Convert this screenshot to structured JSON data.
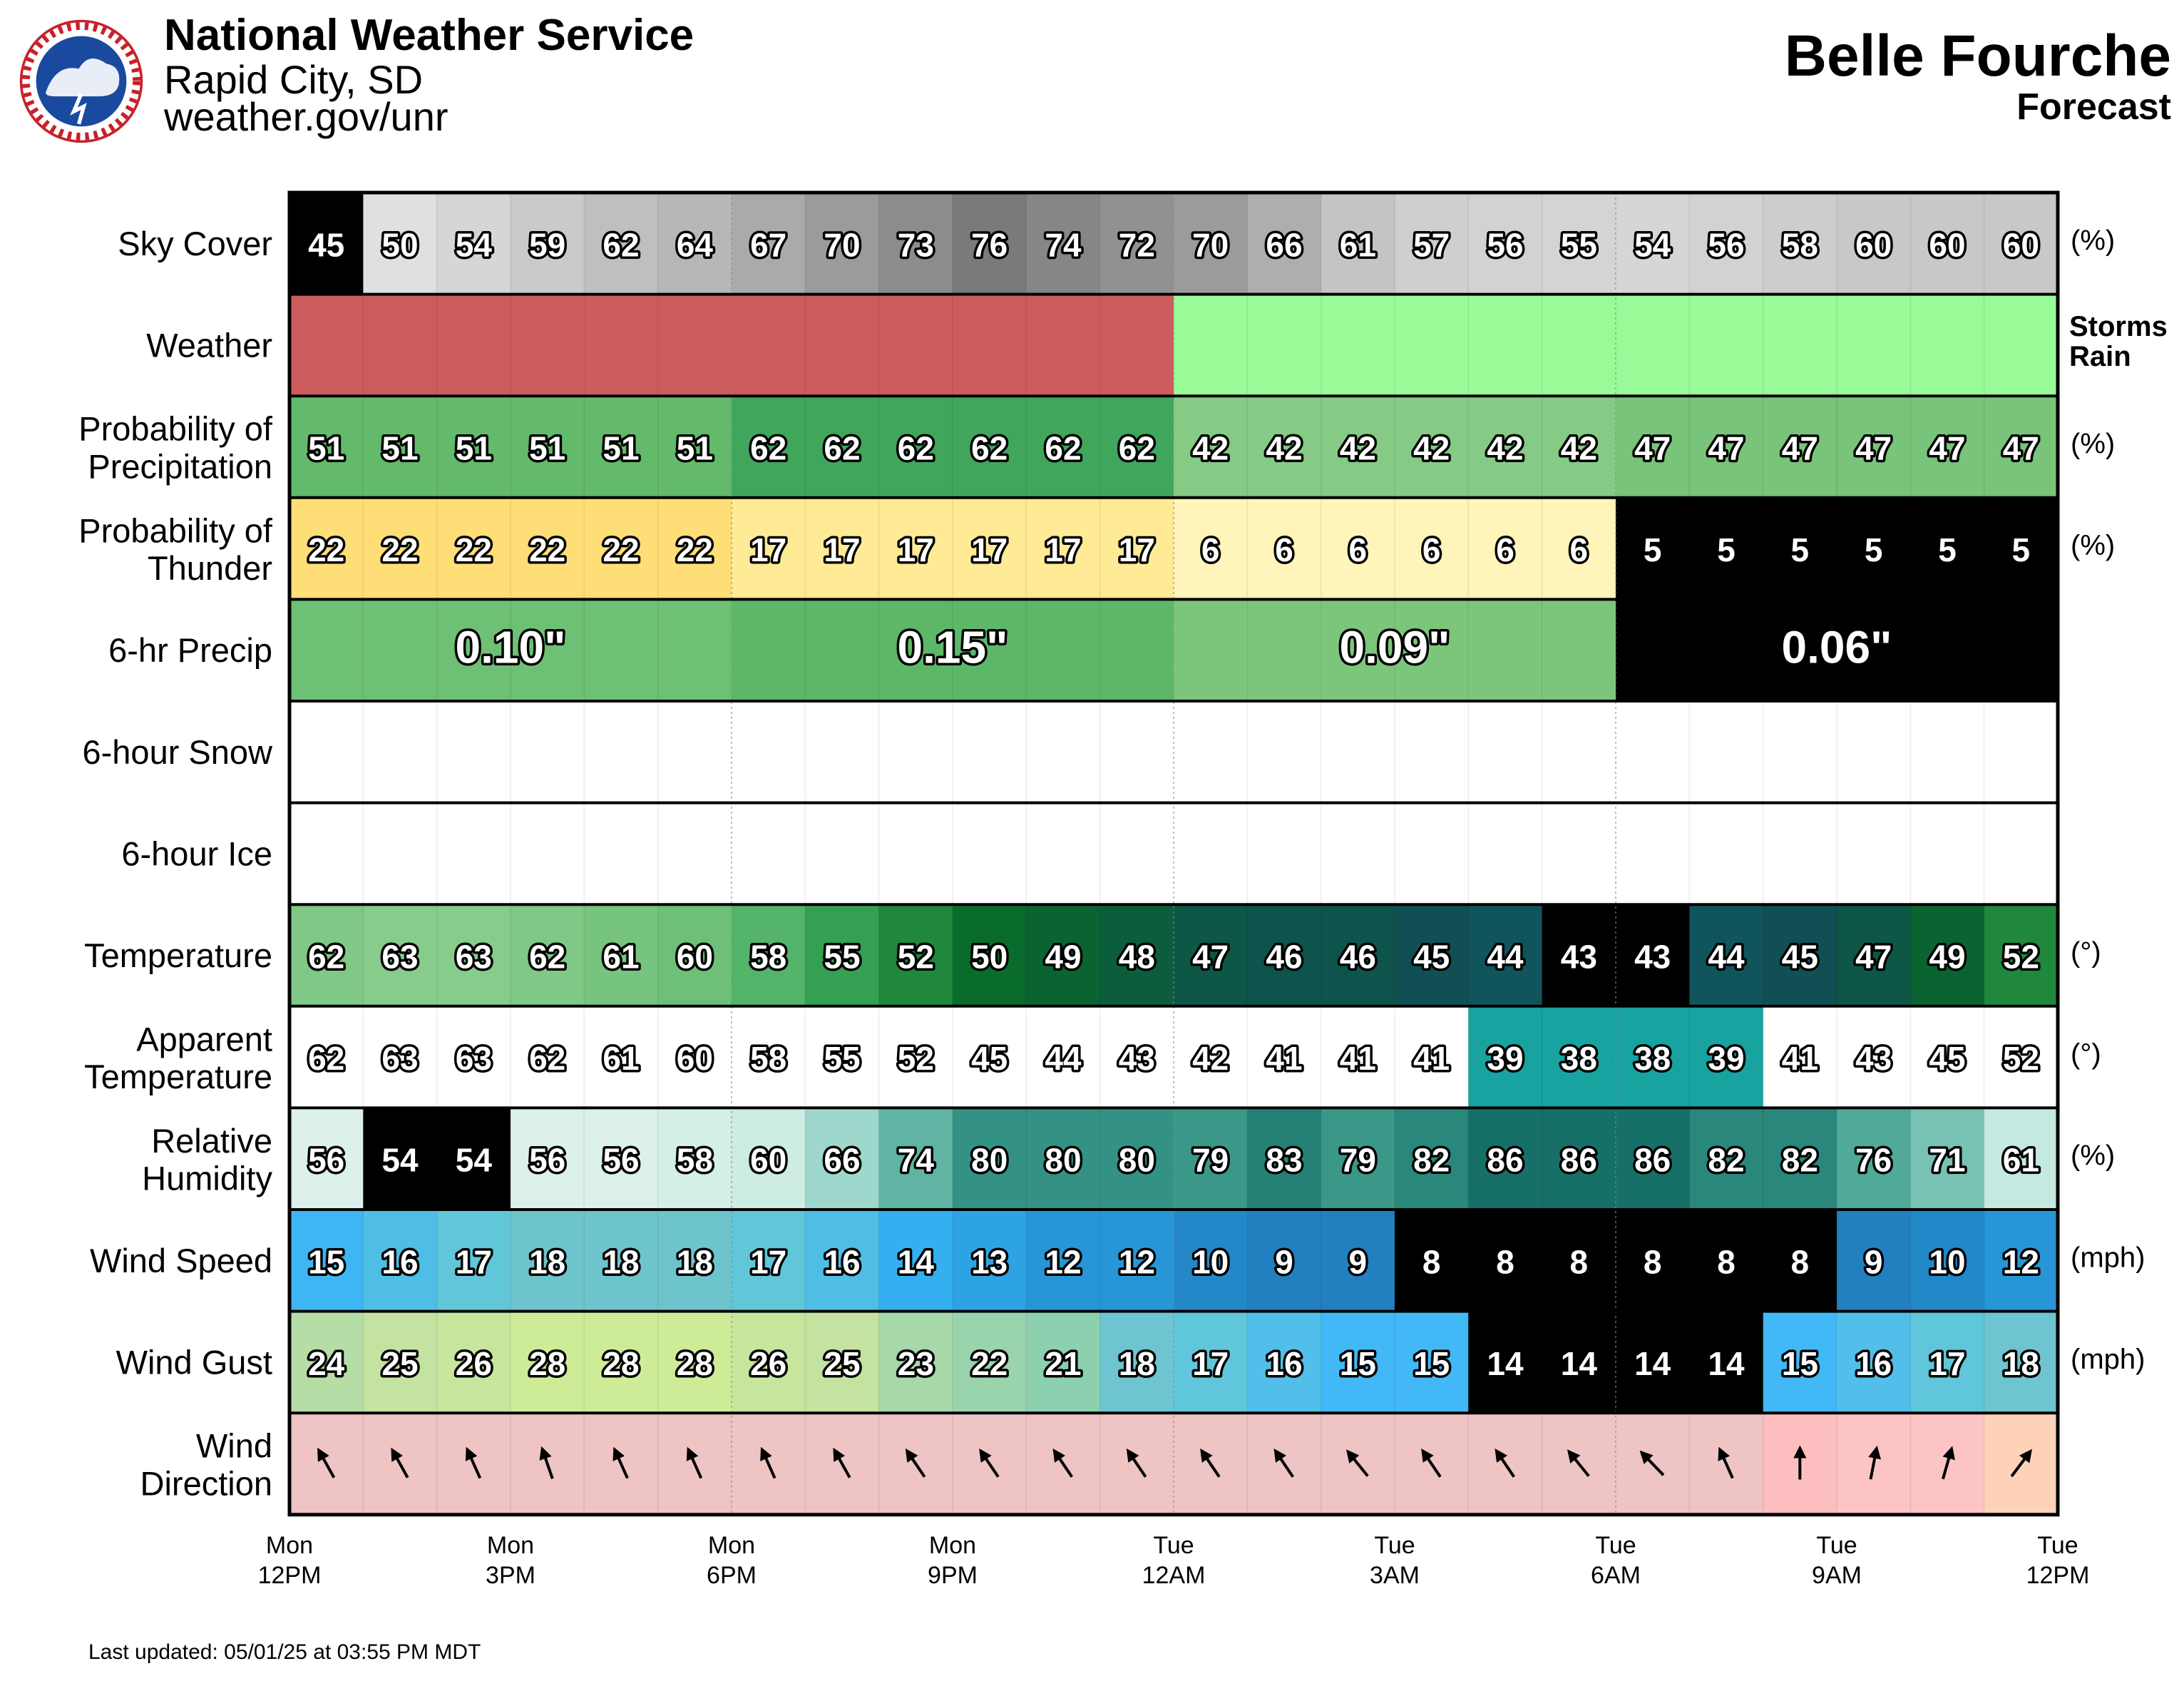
{
  "header": {
    "org": "National Weather Service",
    "office": "Rapid City, SD",
    "url": "weather.gov/unr",
    "location": "Belle Fourche",
    "subtitle": "Forecast",
    "last_updated": "Last updated: 05/01/25 at 03:55 PM MDT"
  },
  "chart_data": {
    "type": "table",
    "hours": 24,
    "time_labels": [
      [
        "Mon",
        "12PM"
      ],
      [
        "Mon",
        "3PM"
      ],
      [
        "Mon",
        "6PM"
      ],
      [
        "Mon",
        "9PM"
      ],
      [
        "Tue",
        "12AM"
      ],
      [
        "Tue",
        "3AM"
      ],
      [
        "Tue",
        "6AM"
      ],
      [
        "Tue",
        "9AM"
      ],
      [
        "Tue",
        "12PM"
      ]
    ],
    "rows": [
      {
        "key": "sky",
        "label": [
          "Sky Cover"
        ],
        "unit": "(%)",
        "values": [
          45,
          50,
          54,
          59,
          62,
          64,
          67,
          70,
          73,
          76,
          74,
          72,
          70,
          66,
          61,
          57,
          56,
          55,
          54,
          56,
          58,
          60,
          60,
          60
        ]
      },
      {
        "key": "weather",
        "label": [
          "Weather"
        ],
        "legend": [
          {
            "text": "Storms",
            "color": "#ee1111"
          },
          {
            "text": "Rain",
            "color": "#1a9a1a"
          }
        ],
        "values": [
          "Storms",
          "Storms",
          "Storms",
          "Storms",
          "Storms",
          "Storms",
          "Storms",
          "Storms",
          "Storms",
          "Storms",
          "Storms",
          "Storms",
          "Rain",
          "Rain",
          "Rain",
          "Rain",
          "Rain",
          "Rain",
          "Rain",
          "Rain",
          "Rain",
          "Rain",
          "Rain",
          "Rain"
        ]
      },
      {
        "key": "pop",
        "label": [
          "Probability of",
          "Precipitation"
        ],
        "unit": "(%)",
        "values": [
          51,
          51,
          51,
          51,
          51,
          51,
          62,
          62,
          62,
          62,
          62,
          62,
          42,
          42,
          42,
          42,
          42,
          42,
          47,
          47,
          47,
          47,
          47,
          47
        ]
      },
      {
        "key": "thunder",
        "label": [
          "Probability of",
          "Thunder"
        ],
        "unit": "(%)",
        "values": [
          22,
          22,
          22,
          22,
          22,
          22,
          17,
          17,
          17,
          17,
          17,
          17,
          6,
          6,
          6,
          6,
          6,
          6,
          5,
          5,
          5,
          5,
          5,
          5
        ]
      },
      {
        "key": "qpf6",
        "label": [
          "6-hr Precip"
        ],
        "blocks": [
          {
            "text": "0.10\"",
            "value": 0.1
          },
          {
            "text": "0.15\"",
            "value": 0.15
          },
          {
            "text": "0.09\"",
            "value": 0.09
          },
          {
            "text": "0.06\"",
            "value": 0.06
          }
        ]
      },
      {
        "key": "snow6",
        "label": [
          "6-hour Snow"
        ],
        "blocks": []
      },
      {
        "key": "ice6",
        "label": [
          "6-hour Ice"
        ],
        "blocks": []
      },
      {
        "key": "temp",
        "label": [
          "Temperature"
        ],
        "unit": "(°)",
        "values": [
          62,
          63,
          63,
          62,
          61,
          60,
          58,
          55,
          52,
          50,
          49,
          48,
          47,
          46,
          46,
          45,
          44,
          43,
          43,
          44,
          45,
          47,
          49,
          52
        ]
      },
      {
        "key": "apparent",
        "label": [
          "Apparent",
          "Temperature"
        ],
        "unit": "(°)",
        "values": [
          62,
          63,
          63,
          62,
          61,
          60,
          58,
          55,
          52,
          45,
          44,
          43,
          42,
          41,
          41,
          41,
          39,
          38,
          38,
          39,
          41,
          43,
          45,
          52
        ]
      },
      {
        "key": "rh",
        "label": [
          "Relative",
          "Humidity"
        ],
        "unit": "(%)",
        "values": [
          56,
          54,
          54,
          56,
          56,
          58,
          60,
          66,
          74,
          80,
          80,
          80,
          79,
          83,
          79,
          82,
          86,
          86,
          86,
          82,
          82,
          76,
          71,
          61
        ]
      },
      {
        "key": "wspd",
        "label": [
          "Wind Speed"
        ],
        "unit": "(mph)",
        "values": [
          15,
          16,
          17,
          18,
          18,
          18,
          17,
          16,
          14,
          13,
          12,
          12,
          10,
          9,
          9,
          8,
          8,
          8,
          8,
          8,
          8,
          9,
          10,
          12
        ]
      },
      {
        "key": "gust",
        "label": [
          "Wind Gust"
        ],
        "unit": "(mph)",
        "values": [
          24,
          25,
          26,
          28,
          28,
          28,
          26,
          25,
          23,
          22,
          21,
          18,
          17,
          16,
          15,
          15,
          14,
          14,
          14,
          14,
          15,
          16,
          17,
          18
        ]
      },
      {
        "key": "wdir",
        "label": [
          "Wind",
          "Direction"
        ],
        "values": [
          331,
          331,
          336,
          341,
          336,
          336,
          336,
          331,
          326,
          326,
          326,
          326,
          326,
          326,
          321,
          326,
          326,
          321,
          316,
          336,
          360,
          11,
          16,
          37
        ]
      }
    ]
  }
}
